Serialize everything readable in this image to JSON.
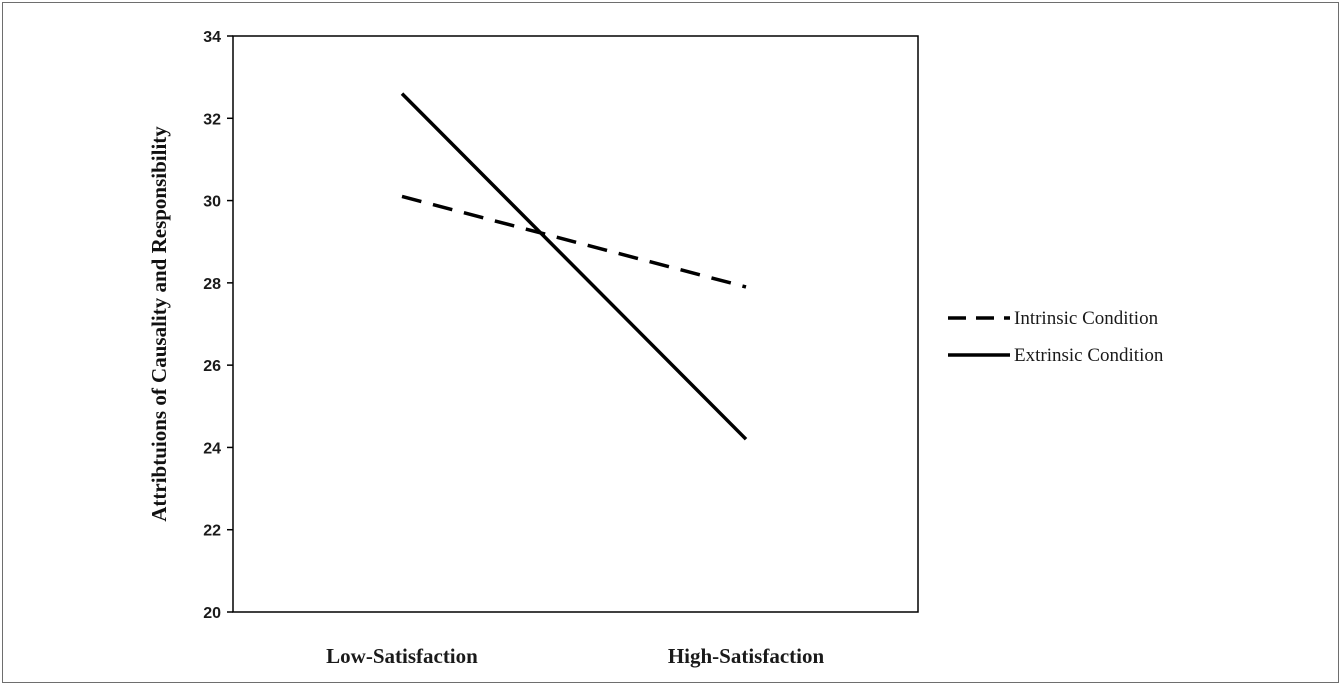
{
  "chart_data": {
    "type": "line",
    "title": "",
    "xlabel": "",
    "ylabel": "Attribtuions of Causality and Responsibility",
    "categories": [
      "Low-Satisfaction",
      "High-Satisfaction"
    ],
    "ylim": [
      20,
      34
    ],
    "yticks": [
      "20",
      "22",
      "24",
      "26",
      "28",
      "30",
      "32",
      "34"
    ],
    "grid": false,
    "legend_position": "right",
    "series": [
      {
        "name": "Intrinsic Condition",
        "values": [
          30.1,
          27.9
        ],
        "style": "dashed",
        "color": "#000000"
      },
      {
        "name": "Extrinsic Condition",
        "values": [
          32.6,
          24.2
        ],
        "style": "solid",
        "color": "#000000"
      }
    ]
  }
}
